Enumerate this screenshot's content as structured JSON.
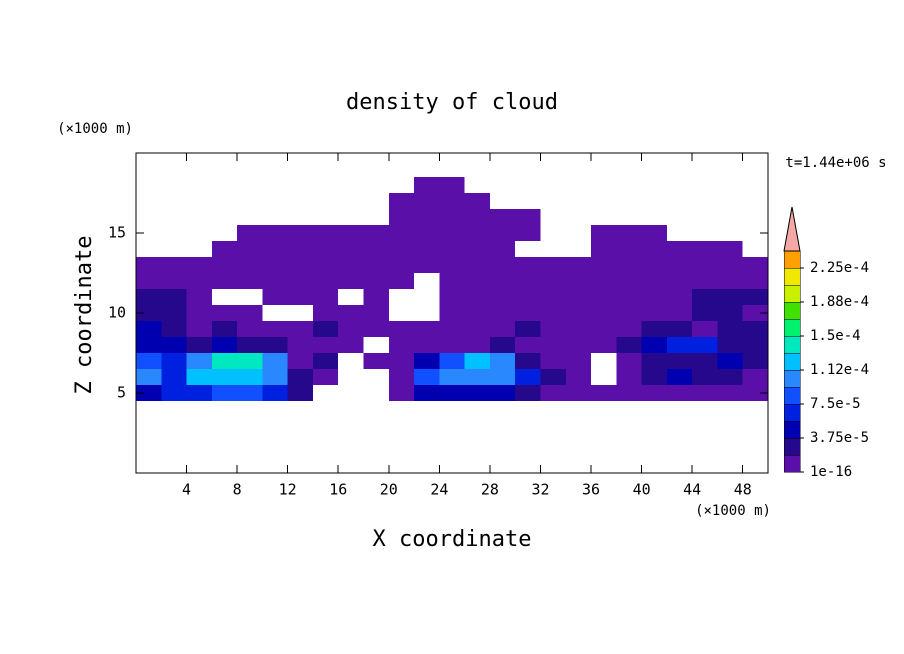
{
  "chart_data": {
    "type": "contour",
    "title": "density of cloud",
    "x_label": "X coordinate",
    "y_label": "Z coordinate",
    "x_unit": "(×1000 m)",
    "y_unit": "(×1000 m)",
    "time_label": "t=1.44e+06 s",
    "xlim": [
      0,
      50
    ],
    "ylim": [
      0,
      20
    ],
    "xticks": [
      4,
      8,
      12,
      16,
      20,
      24,
      28,
      32,
      36,
      40,
      44,
      48
    ],
    "yticks": [
      5,
      10,
      15
    ],
    "x": [
      1,
      3,
      5,
      7,
      9,
      11,
      13,
      15,
      17,
      19,
      21,
      23,
      25,
      27,
      29,
      31,
      33,
      35,
      37,
      39,
      41,
      43,
      45,
      47,
      49
    ],
    "y": [
      5,
      6,
      7,
      8,
      9,
      10,
      11,
      12,
      13,
      14,
      15,
      16,
      17,
      18
    ],
    "z": [
      [
        4e-05,
        6e-05,
        6e-05,
        8e-05,
        8e-05,
        6e-05,
        2e-05,
        null,
        null,
        null,
        1e-06,
        4e-05,
        4e-05,
        4e-05,
        4e-05,
        2e-05,
        1e-06,
        1e-06,
        1e-06,
        1e-06,
        1e-06,
        1e-06,
        1e-06,
        1e-06,
        1e-06
      ],
      [
        0.0001,
        6e-05,
        0.00012,
        0.00012,
        0.00012,
        0.0001,
        2e-05,
        1e-06,
        null,
        null,
        1e-06,
        8e-05,
        0.0001,
        0.0001,
        0.0001,
        6e-05,
        2e-05,
        1e-06,
        null,
        1e-06,
        2e-05,
        4e-05,
        2e-05,
        2e-05,
        1e-06
      ],
      [
        8e-05,
        6e-05,
        0.0001,
        0.00014,
        0.00014,
        0.0001,
        1e-06,
        2e-05,
        null,
        1e-06,
        1e-06,
        4e-05,
        8e-05,
        0.00012,
        0.0001,
        2e-05,
        1e-06,
        1e-06,
        null,
        1e-06,
        2e-05,
        2e-05,
        2e-05,
        4e-05,
        2e-05
      ],
      [
        4e-05,
        4e-05,
        2e-05,
        4e-05,
        2e-05,
        2e-05,
        1e-06,
        1e-06,
        1e-06,
        null,
        1e-06,
        1e-06,
        1e-06,
        1e-06,
        2e-05,
        1e-06,
        1e-06,
        1e-06,
        1e-06,
        2e-05,
        4e-05,
        6e-05,
        6e-05,
        2e-05,
        2e-05
      ],
      [
        4e-05,
        2e-05,
        1e-06,
        2e-05,
        1e-06,
        1e-06,
        1e-06,
        2e-05,
        1e-06,
        1e-06,
        1e-06,
        1e-06,
        1e-06,
        1e-06,
        1e-06,
        2e-05,
        1e-06,
        1e-06,
        1e-06,
        1e-06,
        2e-05,
        2e-05,
        1e-06,
        2e-05,
        2e-05
      ],
      [
        2e-05,
        2e-05,
        1e-06,
        1e-06,
        1e-06,
        null,
        null,
        1e-06,
        1e-06,
        1e-06,
        null,
        null,
        1e-06,
        1e-06,
        1e-06,
        1e-06,
        1e-06,
        1e-06,
        1e-06,
        1e-06,
        1e-06,
        1e-06,
        2e-05,
        2e-05,
        1e-06
      ],
      [
        2e-05,
        2e-05,
        1e-06,
        null,
        null,
        1e-06,
        1e-06,
        1e-06,
        null,
        1e-06,
        null,
        null,
        1e-06,
        1e-06,
        1e-06,
        1e-06,
        1e-06,
        1e-06,
        1e-06,
        1e-06,
        1e-06,
        1e-06,
        2e-05,
        2e-05,
        2e-05
      ],
      [
        1e-06,
        1e-06,
        1e-06,
        1e-06,
        1e-06,
        1e-06,
        1e-06,
        1e-06,
        1e-06,
        1e-06,
        1e-06,
        null,
        1e-06,
        1e-06,
        1e-06,
        1e-06,
        1e-06,
        1e-06,
        1e-06,
        1e-06,
        1e-06,
        1e-06,
        1e-06,
        1e-06,
        1e-06
      ],
      [
        1e-06,
        1e-06,
        1e-06,
        1e-06,
        1e-06,
        1e-06,
        1e-06,
        1e-06,
        1e-06,
        1e-06,
        1e-06,
        1e-06,
        1e-06,
        1e-06,
        1e-06,
        1e-06,
        1e-06,
        1e-06,
        1e-06,
        1e-06,
        1e-06,
        1e-06,
        1e-06,
        1e-06,
        1e-06
      ],
      [
        null,
        null,
        null,
        1e-06,
        1e-06,
        1e-06,
        1e-06,
        1e-06,
        1e-06,
        1e-06,
        1e-06,
        1e-06,
        1e-06,
        1e-06,
        1e-06,
        null,
        null,
        null,
        1e-06,
        1e-06,
        1e-06,
        1e-06,
        1e-06,
        1e-06,
        null
      ],
      [
        null,
        null,
        null,
        null,
        1e-06,
        1e-06,
        1e-06,
        1e-06,
        1e-06,
        1e-06,
        1e-06,
        1e-06,
        1e-06,
        1e-06,
        1e-06,
        1e-06,
        null,
        null,
        1e-06,
        1e-06,
        1e-06,
        null,
        null,
        null,
        null
      ],
      [
        null,
        null,
        null,
        null,
        null,
        null,
        null,
        null,
        null,
        null,
        1e-06,
        1e-06,
        1e-06,
        1e-06,
        1e-06,
        1e-06,
        null,
        null,
        null,
        null,
        null,
        null,
        null,
        null,
        null
      ],
      [
        null,
        null,
        null,
        null,
        null,
        null,
        null,
        null,
        null,
        null,
        1e-06,
        1e-06,
        1e-06,
        1e-06,
        null,
        null,
        null,
        null,
        null,
        null,
        null,
        null,
        null,
        null,
        null
      ],
      [
        null,
        null,
        null,
        null,
        null,
        null,
        null,
        null,
        null,
        null,
        null,
        1e-06,
        1e-06,
        null,
        null,
        null,
        null,
        null,
        null,
        null,
        null,
        null,
        null,
        null,
        null
      ]
    ],
    "colorbar": {
      "levels": [
        1e-16,
        1.875e-05,
        3.75e-05,
        5.625e-05,
        7.5e-05,
        9.375e-05,
        0.0001125,
        0.00013125,
        0.00015,
        0.00016875,
        0.0001875,
        0.00020625,
        0.000225,
        0.00024375
      ],
      "colors": [
        "#5a0fa8",
        "#26088c",
        "#0000b0",
        "#0020e0",
        "#1050ff",
        "#2a88ff",
        "#00c0ff",
        "#00e8c0",
        "#00f070",
        "#40e000",
        "#c8f000",
        "#f0e800",
        "#ffa000"
      ],
      "over_color": "#f4a8a8",
      "ticks": [
        {
          "value": 1e-16,
          "label": "1e-16"
        },
        {
          "value": 3.75e-05,
          "label": "3.75e-5"
        },
        {
          "value": 7.5e-05,
          "label": "7.5e-5"
        },
        {
          "value": 0.0001125,
          "label": "1.12e-4"
        },
        {
          "value": 0.00015,
          "label": "1.5e-4"
        },
        {
          "value": 0.0001875,
          "label": "1.88e-4"
        },
        {
          "value": 0.000225,
          "label": "2.25e-4"
        }
      ]
    }
  }
}
